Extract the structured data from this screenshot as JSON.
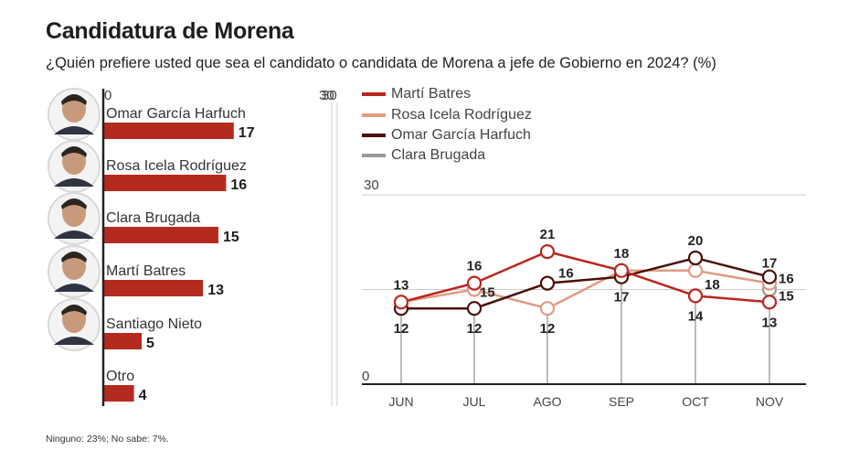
{
  "header": {
    "title": "Candidatura de Morena",
    "subtitle": "¿Quién prefiere usted que sea el candidato o candidata de Morena a jefe de Gobierno en 2024?  (%)"
  },
  "footnote": "Ninguno: 23%; No sabe: 7%.",
  "colors": {
    "bar": "#b52a1e",
    "marti": "#b9261c",
    "rosa": "#e09b83",
    "omar": "#4a0f08",
    "clara": "#999999",
    "grid": "#cccccc",
    "axis": "#222222"
  },
  "chart_data": [
    {
      "type": "bar",
      "orientation": "horizontal",
      "axis_min_label": "0",
      "axis_max_label": "30",
      "xlim": [
        0,
        30
      ],
      "categories": [
        "Omar García Harfuch",
        "Rosa Icela Rodríguez",
        "Clara Brugada",
        "Martí Batres",
        "Santiago Nieto",
        "Otro"
      ],
      "values": [
        17,
        16,
        15,
        13,
        5,
        4
      ],
      "value_labels": [
        "17",
        "16",
        "15",
        "13",
        "5",
        "4"
      ],
      "photos": [
        "omar-photo",
        "rosa-photo",
        "clara-photo",
        "marti-photo",
        "santiago-photo",
        null
      ]
    },
    {
      "type": "line",
      "categories": [
        "JUN",
        "JUL",
        "AGO",
        "SEP",
        "OCT",
        "NOV"
      ],
      "ylim": [
        0,
        30
      ],
      "y_tick_labels": [
        "0",
        "30"
      ],
      "gridline_at": 15,
      "legend": [
        "Martí Batres",
        "Rosa Icela Rodríguez",
        "Omar García Harfuch",
        "Clara Brugada"
      ],
      "legend_position": "top-left",
      "series": [
        {
          "name": "Martí Batres",
          "key": "marti",
          "values": [
            13,
            16,
            21,
            18,
            14,
            13
          ]
        },
        {
          "name": "Rosa Icela Rodríguez",
          "key": "rosa",
          "values": [
            13,
            15,
            12,
            18,
            18,
            16
          ]
        },
        {
          "name": "Omar García Harfuch",
          "key": "omar",
          "values": [
            12,
            12,
            16,
            17,
            20,
            17
          ]
        },
        {
          "name": "Clara Brugada",
          "key": "clara",
          "values": [
            null,
            null,
            null,
            null,
            null,
            15
          ]
        }
      ],
      "point_labels": [
        {
          "month": "JUN",
          "text": "13",
          "value": 13,
          "pos": "above"
        },
        {
          "month": "JUN",
          "text": "12",
          "value": 12,
          "pos": "below"
        },
        {
          "month": "JUL",
          "text": "16",
          "value": 16,
          "pos": "above"
        },
        {
          "month": "JUL",
          "text": "15",
          "value": 15,
          "pos": "right"
        },
        {
          "month": "JUL",
          "text": "12",
          "value": 12,
          "pos": "below"
        },
        {
          "month": "AGO",
          "text": "21",
          "value": 21,
          "pos": "above"
        },
        {
          "month": "AGO",
          "text": "16",
          "value": 16,
          "pos": "right-above"
        },
        {
          "month": "AGO",
          "text": "12",
          "value": 12,
          "pos": "below"
        },
        {
          "month": "SEP",
          "text": "18",
          "value": 18,
          "pos": "above"
        },
        {
          "month": "SEP",
          "text": "17",
          "value": 17,
          "pos": "below"
        },
        {
          "month": "OCT",
          "text": "20",
          "value": 20,
          "pos": "above"
        },
        {
          "month": "OCT",
          "text": "18",
          "value": 18,
          "pos": "right-below"
        },
        {
          "month": "OCT",
          "text": "14",
          "value": 14,
          "pos": "below"
        },
        {
          "month": "NOV",
          "text": "17",
          "value": 17,
          "pos": "above"
        },
        {
          "month": "NOV",
          "text": "16",
          "value": 16,
          "pos": "right"
        },
        {
          "month": "NOV",
          "text": "15",
          "value": 15,
          "pos": "right"
        },
        {
          "month": "NOV",
          "text": "13",
          "value": 13,
          "pos": "below"
        }
      ]
    }
  ]
}
